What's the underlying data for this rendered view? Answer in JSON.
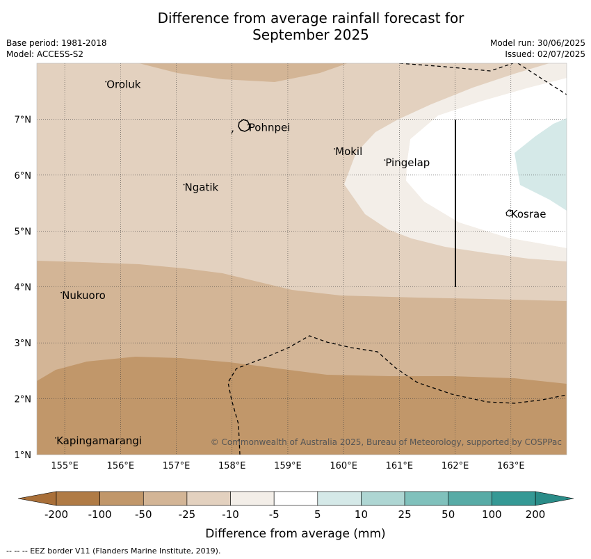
{
  "title_line1": "Difference from average rainfall forecast for",
  "title_line2": "September 2025",
  "meta": {
    "base_period": "Base period: 1981-2018",
    "model": "Model: ACCESS-S2",
    "model_run": "Model run: 30/06/2025",
    "issued": "Issued: 02/07/2025"
  },
  "axes": {
    "lon_labels": [
      "155°E",
      "156°E",
      "157°E",
      "158°E",
      "159°E",
      "160°E",
      "161°E",
      "162°E",
      "163°E"
    ],
    "lat_labels": [
      "7°N",
      "6°N",
      "5°N",
      "4°N",
      "3°N",
      "2°N",
      "1°N"
    ],
    "lon_range": [
      154.5,
      164.0
    ],
    "lat_range": [
      1.0,
      8.0
    ],
    "grid": true
  },
  "places": [
    {
      "name": "Oroluk",
      "lon": 155.75,
      "lat": 7.62
    },
    {
      "name": "Pohnpei",
      "lon": 158.3,
      "lat": 6.85
    },
    {
      "name": "Mokil",
      "lon": 159.85,
      "lat": 6.42
    },
    {
      "name": "Pingelap",
      "lon": 160.75,
      "lat": 6.22
    },
    {
      "name": "Ngatik",
      "lon": 157.15,
      "lat": 5.78
    },
    {
      "name": "Kosrae",
      "lon": 163.0,
      "lat": 5.3
    },
    {
      "name": "Nukuoro",
      "lon": 154.95,
      "lat": 3.85
    },
    {
      "name": "Kapingamarangi",
      "lon": 154.85,
      "lat": 1.25
    }
  ],
  "copyright": "© Commonwealth of Australia 2025, Bureau of Meteorology, supported by COSPPac",
  "colorbar": {
    "title": "Difference from average (mm)",
    "labels": [
      "-200",
      "-100",
      "-50",
      "-25",
      "-10",
      "-5",
      "5",
      "10",
      "25",
      "50",
      "100",
      "200"
    ],
    "colors": [
      "#b07b45",
      "#c1976a",
      "#d3b596",
      "#e3d1bf",
      "#f3eee8",
      "#ffffff",
      "#d5e9e8",
      "#aed6d3",
      "#80c1bc",
      "#58aba6",
      "#359995"
    ],
    "extend_low_color": "#a96f38",
    "extend_high_color": "#2a8c88"
  },
  "footnote": "-- -- -- EEZ border V11 (Flanders Marine Institute, 2019)."
}
